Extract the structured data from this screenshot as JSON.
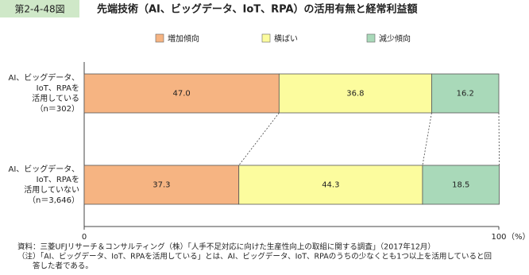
{
  "chart_data": {
    "type": "stacked_barh",
    "figure_number": "第2-4-48図",
    "title": "先端技術（AI、ビッグデータ、IoT、RPA）の活用有無と経常利益額",
    "categories": [
      [
        "AI、ビッグデータ、",
        "IoT、RPAを",
        "活用している",
        "（n＝302）"
      ],
      [
        "AI、ビッグデータ、",
        "IoT、RPAを",
        "活用していない",
        "（n＝3,646）"
      ]
    ],
    "series": [
      {
        "name": "増加傾向",
        "color": "#f6b482",
        "values": [
          47.0,
          37.3
        ],
        "value_labels": [
          "47.0",
          "37.3"
        ]
      },
      {
        "name": "横ばい",
        "color": "#fcfc9e",
        "values": [
          36.8,
          44.3
        ]
      },
      {
        "name": "減少傾向",
        "color": "#a9d9b9",
        "values": [
          16.2,
          18.5
        ]
      }
    ],
    "xlim": [
      0,
      100
    ],
    "xticks": [
      0,
      100
    ],
    "x_unit": "（%）",
    "notes": [
      "資料：三菱UFJリサーチ＆コンサルティング（株）「人手不足対応に向けた生産性向上の取組に関する調査」（2017年12月）",
      "（注）「AI、ビッグデータ、IoT、RPAを活用している」とは、AI、ビッグデータ、IoT、RPAのうちの少なくとも1つ以上を活用していると回",
      "　　答した者である。"
    ]
  }
}
